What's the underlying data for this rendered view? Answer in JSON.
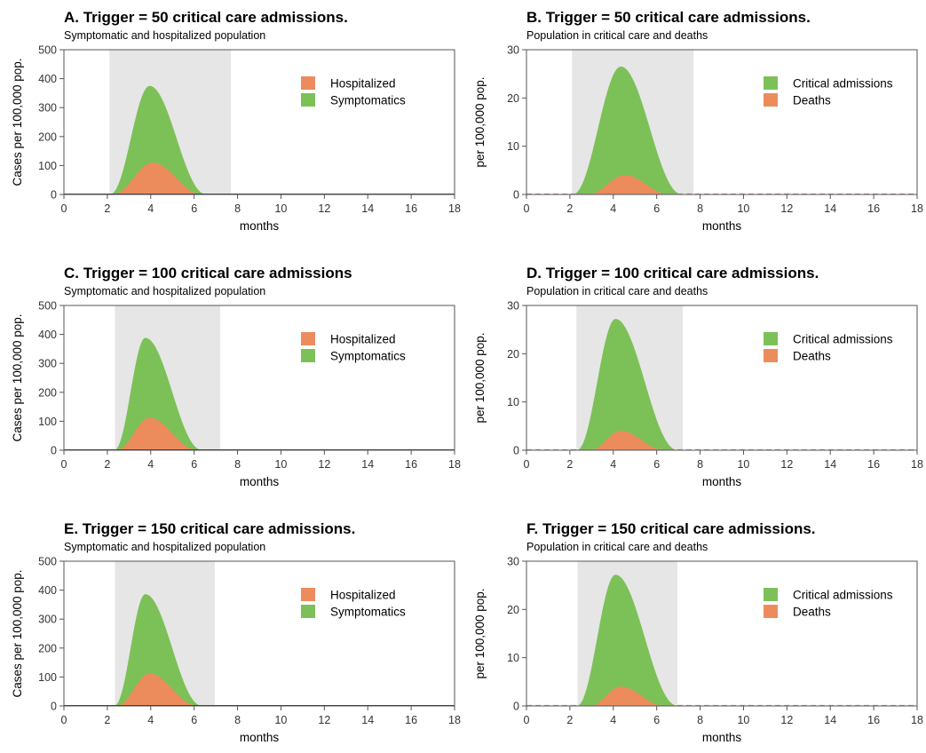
{
  "colors": {
    "green": "#7cc157",
    "orange": "#ec8c5c",
    "shade": "#e6e6e6",
    "axis": "#555555",
    "dashed": "#c88a8a"
  },
  "chart_data": [
    {
      "id": "A",
      "type": "area",
      "title": "A. Trigger = 50 critical care admissions.",
      "subtitle": "Symptomatic and hospitalized population",
      "xlabel": "months",
      "ylabel": "Cases per 100,000 pop.",
      "xlim": [
        0,
        18
      ],
      "ylim": [
        0,
        500
      ],
      "xticks": [
        "0",
        "2",
        "4",
        "6",
        "8",
        "10",
        "12",
        "14",
        "16",
        "18"
      ],
      "yticks": [
        "0",
        "100",
        "200",
        "300",
        "400",
        "500"
      ],
      "shaded_interval": [
        2.1,
        7.7
      ],
      "legend_position": "top-right",
      "series": [
        {
          "name": "Hospitalized",
          "color_key": "orange",
          "peak_x": 4.1,
          "peak_y": 110,
          "start_x": 2.2,
          "end_x": 6.4
        },
        {
          "name": "Symptomatics",
          "color_key": "green",
          "peak_x": 3.95,
          "peak_y": 375,
          "start_x": 2.1,
          "end_x": 6.6
        }
      ]
    },
    {
      "id": "B",
      "type": "area",
      "title": "B. Trigger = 50 critical care admissions.",
      "subtitle": "Population in critical care and deaths",
      "xlabel": "months",
      "ylabel": "per 100,000 pop.",
      "xlim": [
        0,
        18
      ],
      "ylim": [
        0,
        30
      ],
      "xticks": [
        "0",
        "2",
        "4",
        "6",
        "8",
        "10",
        "12",
        "14",
        "16",
        "18"
      ],
      "yticks": [
        "0",
        "10",
        "20",
        "30"
      ],
      "shaded_interval": [
        2.1,
        7.7
      ],
      "baseline_dashed": true,
      "legend_position": "top-right",
      "series": [
        {
          "name": "Critical admissions",
          "color_key": "green",
          "peak_x": 4.35,
          "peak_y": 26.5,
          "start_x": 2.1,
          "end_x": 7.2
        },
        {
          "name": "Deaths",
          "color_key": "orange",
          "peak_x": 4.55,
          "peak_y": 4,
          "start_x": 2.8,
          "end_x": 6.6
        }
      ]
    },
    {
      "id": "C",
      "type": "area",
      "title": "C. Trigger = 100 critical care admissions",
      "subtitle": "Symptomatic and hospitalized population",
      "xlabel": "months",
      "ylabel": "Cases per 100,000 pop.",
      "xlim": [
        0,
        18
      ],
      "ylim": [
        0,
        500
      ],
      "xticks": [
        "0",
        "2",
        "4",
        "6",
        "8",
        "10",
        "12",
        "14",
        "16",
        "18"
      ],
      "yticks": [
        "0",
        "100",
        "200",
        "300",
        "400",
        "500"
      ],
      "shaded_interval": [
        2.35,
        7.2
      ],
      "legend_position": "top-right",
      "series": [
        {
          "name": "Hospitalized",
          "color_key": "orange",
          "peak_x": 3.95,
          "peak_y": 112,
          "start_x": 2.4,
          "end_x": 6.2
        },
        {
          "name": "Symptomatics",
          "color_key": "green",
          "peak_x": 3.75,
          "peak_y": 388,
          "start_x": 2.3,
          "end_x": 6.4
        }
      ]
    },
    {
      "id": "D",
      "type": "area",
      "title": "D. Trigger = 100 critical care admissions.",
      "subtitle": "Population in critical care and deaths",
      "xlabel": "months",
      "ylabel": "per 100,000 pop.",
      "xlim": [
        0,
        18
      ],
      "ylim": [
        0,
        30
      ],
      "xticks": [
        "0",
        "2",
        "4",
        "6",
        "8",
        "10",
        "12",
        "14",
        "16",
        "18"
      ],
      "yticks": [
        "0",
        "10",
        "20",
        "30"
      ],
      "shaded_interval": [
        2.3,
        7.2
      ],
      "baseline_dashed": true,
      "legend_position": "top-right",
      "series": [
        {
          "name": "Critical admissions",
          "color_key": "green",
          "peak_x": 4.1,
          "peak_y": 27.2,
          "start_x": 2.3,
          "end_x": 7.0
        },
        {
          "name": "Deaths",
          "color_key": "orange",
          "peak_x": 4.35,
          "peak_y": 4,
          "start_x": 2.9,
          "end_x": 6.4
        }
      ]
    },
    {
      "id": "E",
      "type": "area",
      "title": "E. Trigger = 150 critical care admissions.",
      "subtitle": "Symptomatic and hospitalized population",
      "xlabel": "months",
      "ylabel": "Cases per 100,000 pop.",
      "xlim": [
        0,
        18
      ],
      "ylim": [
        0,
        500
      ],
      "xticks": [
        "0",
        "2",
        "4",
        "6",
        "8",
        "10",
        "12",
        "14",
        "16",
        "18"
      ],
      "yticks": [
        "0",
        "100",
        "200",
        "300",
        "400",
        "500"
      ],
      "shaded_interval": [
        2.35,
        6.95
      ],
      "legend_position": "top-right",
      "series": [
        {
          "name": "Hospitalized",
          "color_key": "orange",
          "peak_x": 3.95,
          "peak_y": 112,
          "start_x": 2.4,
          "end_x": 6.2
        },
        {
          "name": "Symptomatics",
          "color_key": "green",
          "peak_x": 3.75,
          "peak_y": 386,
          "start_x": 2.3,
          "end_x": 6.4
        }
      ]
    },
    {
      "id": "F",
      "type": "area",
      "title": "F. Trigger = 150 critical care admissions.",
      "subtitle": "Population in critical care and deaths",
      "xlabel": "months",
      "ylabel": "per 100,000 pop.",
      "xlim": [
        0,
        18
      ],
      "ylim": [
        0,
        30
      ],
      "xticks": [
        "0",
        "2",
        "4",
        "6",
        "8",
        "10",
        "12",
        "14",
        "16",
        "18"
      ],
      "yticks": [
        "0",
        "10",
        "20",
        "30"
      ],
      "shaded_interval": [
        2.35,
        6.95
      ],
      "baseline_dashed": true,
      "legend_position": "top-right",
      "series": [
        {
          "name": "Critical admissions",
          "color_key": "green",
          "peak_x": 4.1,
          "peak_y": 27.2,
          "start_x": 2.3,
          "end_x": 7.0
        },
        {
          "name": "Deaths",
          "color_key": "orange",
          "peak_x": 4.35,
          "peak_y": 4,
          "start_x": 2.9,
          "end_x": 6.4
        }
      ]
    }
  ]
}
